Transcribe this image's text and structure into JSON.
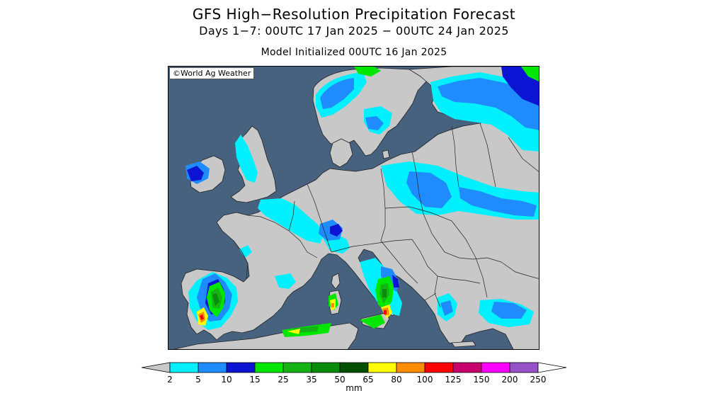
{
  "header": {
    "title": "GFS High−Resolution Precipitation Forecast",
    "subtitle": "Days 1−7: 00UTC 17 Jan 2025 − 00UTC 24 Jan 2025",
    "init": "Model Initialized 00UTC 16 Jan 2025"
  },
  "map": {
    "credit": "©World Ag Weather",
    "region": "Europe",
    "ocean_color": "#46627f",
    "land_color": "#c8c8c8"
  },
  "legend": {
    "unit": "mm",
    "levels": [
      "2",
      "5",
      "10",
      "15",
      "25",
      "35",
      "50",
      "65",
      "80",
      "100",
      "125",
      "150",
      "200",
      "250"
    ],
    "colors": [
      "#c8c8c8",
      "#00f0ff",
      "#1e8cff",
      "#0a14d2",
      "#00e600",
      "#14b414",
      "#0a8c0a",
      "#005000",
      "#ffff00",
      "#ff8c00",
      "#ff0000",
      "#c8006e",
      "#ff00ff",
      "#9650c8",
      "#ffffff"
    ]
  }
}
